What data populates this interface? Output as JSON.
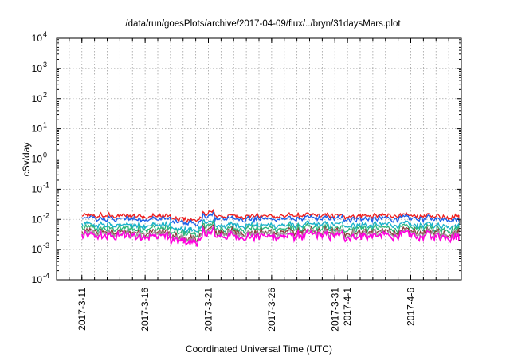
{
  "chart_data": {
    "type": "line",
    "title": "/data/run/goesPlots/archive/2017-04-09/flux/../bryn/31daysMars.plot",
    "xlabel": "Coordinated Universal Time (UTC)",
    "ylabel": "cSv/day",
    "yscale": "log",
    "ylim": [
      0.0001,
      10000
    ],
    "yticks": [
      {
        "value": 0.0001,
        "base": "10",
        "exp": "-4"
      },
      {
        "value": 0.001,
        "base": "10",
        "exp": "-3"
      },
      {
        "value": 0.01,
        "base": "10",
        "exp": "-2"
      },
      {
        "value": 0.1,
        "base": "10",
        "exp": "-1"
      },
      {
        "value": 1,
        "base": "10",
        "exp": "0"
      },
      {
        "value": 10,
        "base": "10",
        "exp": "1"
      },
      {
        "value": 100,
        "base": "10",
        "exp": "2"
      },
      {
        "value": 1000,
        "base": "10",
        "exp": "3"
      },
      {
        "value": 10000,
        "base": "10",
        "exp": "4"
      }
    ],
    "xlim": [
      "2017-03-09",
      "2017-04-10"
    ],
    "xticks": [
      {
        "date": "2017-03-11",
        "label": "2017-3-11"
      },
      {
        "date": "2017-03-16",
        "label": "2017-3-16"
      },
      {
        "date": "2017-03-21",
        "label": "2017-3-21"
      },
      {
        "date": "2017-03-26",
        "label": "2017-3-26"
      },
      {
        "date": "2017-03-31",
        "label": "2017-3-31"
      },
      {
        "date": "2017-04-01",
        "label": "2017-4-1"
      },
      {
        "date": "2017-04-06",
        "label": "2017-4-6"
      }
    ],
    "grid": true,
    "series": [
      {
        "color": "#ee1c1c",
        "level": 0.013
      },
      {
        "color": "#1a5fe8",
        "level": 0.0105
      },
      {
        "color": "#16b0c8",
        "level": 0.0065
      },
      {
        "color": "#2db57a",
        "level": 0.005
      },
      {
        "color": "#8a3a3a",
        "level": 0.0038
      },
      {
        "color": "#9b9b9b",
        "level": 0.0033
      },
      {
        "color": "#ff00dd",
        "level": 0.0028
      }
    ]
  }
}
